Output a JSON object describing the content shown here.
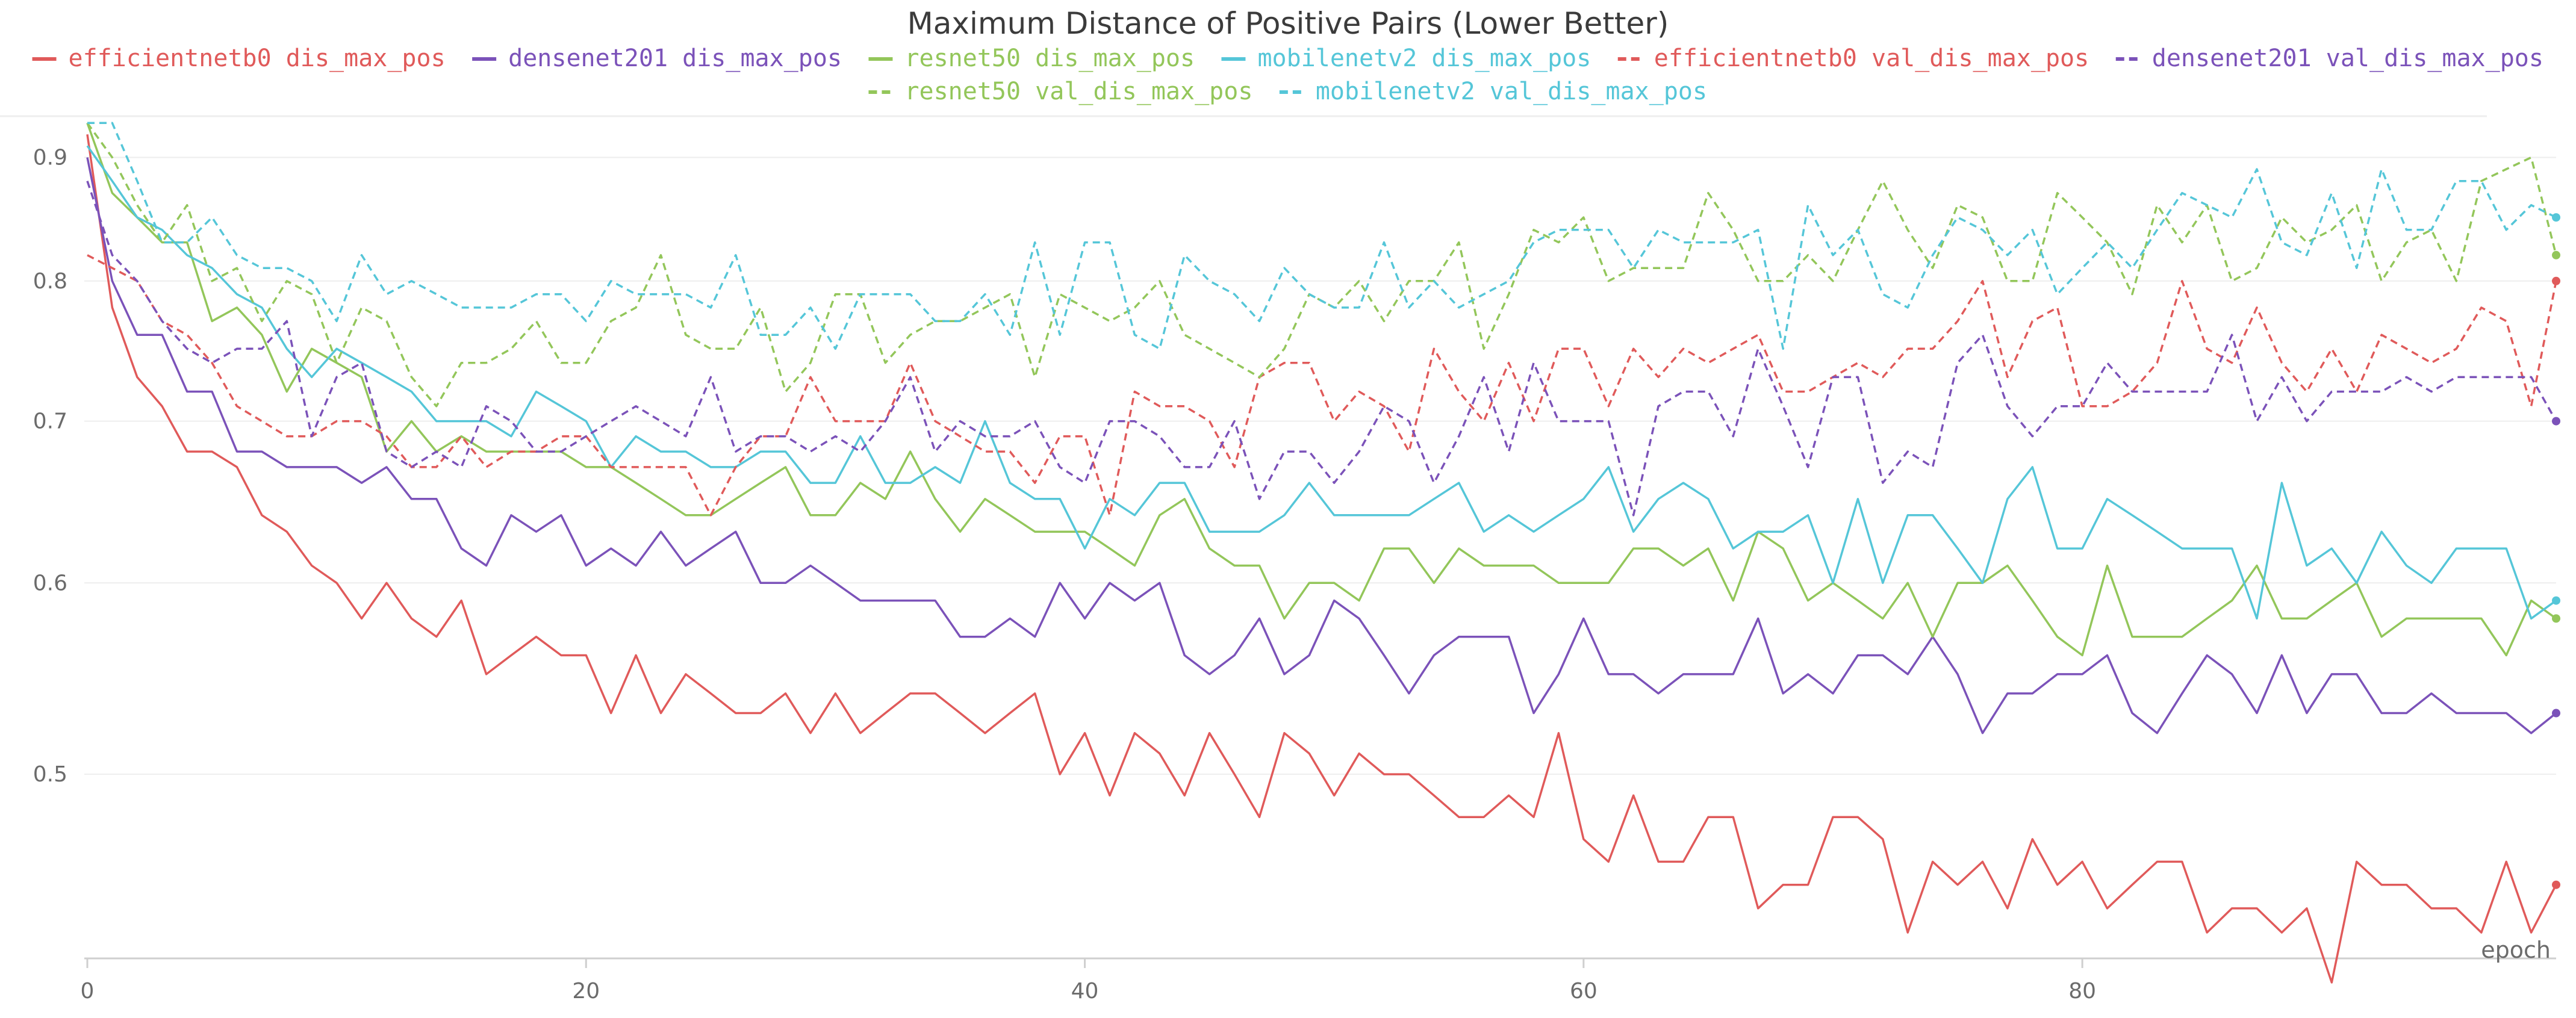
{
  "colors": {
    "efficientnetb0": "#e05a5a",
    "densenet201": "#7b52b9",
    "resnet50": "#93c65a",
    "mobilenetv2": "#55c6d8",
    "grid": "#eeeeee",
    "axis": "#cfcfcf",
    "text": "#6b6b6b",
    "title": "#3b3b3b"
  },
  "chart_data": {
    "type": "line",
    "title": "Maximum Distance of Positive Pairs (Lower Better)",
    "xlabel": "epoch",
    "ylabel": "",
    "xlim": [
      0,
      99
    ],
    "ylim": [
      0.42,
      0.935
    ],
    "y_scale": "log",
    "x_ticks": [
      0,
      20,
      40,
      60,
      80
    ],
    "y_ticks": [
      0.5,
      0.6,
      0.7,
      0.8,
      0.9
    ],
    "grid": true,
    "legend": "top",
    "series": [
      {
        "name": "efficientnetb0 dis_max_pos",
        "model": "efficientnetb0",
        "dash": "solid",
        "values": [
          0.92,
          0.78,
          0.73,
          0.71,
          0.68,
          0.68,
          0.67,
          0.64,
          0.63,
          0.61,
          0.6,
          0.58,
          0.6,
          0.58,
          0.57,
          0.59,
          0.55,
          0.56,
          0.57,
          0.56,
          0.56,
          0.53,
          0.56,
          0.53,
          0.55,
          0.54,
          0.53,
          0.53,
          0.54,
          0.52,
          0.54,
          0.52,
          0.53,
          0.54,
          0.54,
          0.53,
          0.52,
          0.53,
          0.54,
          0.5,
          0.52,
          0.49,
          0.52,
          0.51,
          0.49,
          0.52,
          0.5,
          0.48,
          0.52,
          0.51,
          0.49,
          0.51,
          0.5,
          0.5,
          0.49,
          0.48,
          0.48,
          0.49,
          0.48,
          0.52,
          0.47,
          0.46,
          0.49,
          0.46,
          0.46,
          0.48,
          0.48,
          0.44,
          0.45,
          0.45,
          0.48,
          0.48,
          0.47,
          0.43,
          0.46,
          0.45,
          0.46,
          0.44,
          0.47,
          0.45,
          0.46,
          0.44,
          0.45,
          0.46,
          0.46,
          0.43,
          0.44,
          0.44,
          0.43,
          0.44,
          0.41,
          0.46,
          0.45,
          0.45,
          0.44,
          0.44,
          0.43,
          0.46,
          0.43,
          0.45
        ]
      },
      {
        "name": "densenet201 dis_max_pos",
        "model": "densenet201",
        "dash": "solid",
        "values": [
          0.9,
          0.8,
          0.76,
          0.76,
          0.72,
          0.72,
          0.68,
          0.68,
          0.67,
          0.67,
          0.67,
          0.66,
          0.67,
          0.65,
          0.65,
          0.62,
          0.61,
          0.64,
          0.63,
          0.64,
          0.61,
          0.62,
          0.61,
          0.63,
          0.61,
          0.62,
          0.63,
          0.6,
          0.6,
          0.61,
          0.6,
          0.59,
          0.59,
          0.59,
          0.59,
          0.57,
          0.57,
          0.58,
          0.57,
          0.6,
          0.58,
          0.6,
          0.59,
          0.6,
          0.56,
          0.55,
          0.56,
          0.58,
          0.55,
          0.56,
          0.59,
          0.58,
          0.56,
          0.54,
          0.56,
          0.57,
          0.57,
          0.57,
          0.53,
          0.55,
          0.58,
          0.55,
          0.55,
          0.54,
          0.55,
          0.55,
          0.55,
          0.58,
          0.54,
          0.55,
          0.54,
          0.56,
          0.56,
          0.55,
          0.57,
          0.55,
          0.52,
          0.54,
          0.54,
          0.55,
          0.55,
          0.56,
          0.53,
          0.52,
          0.54,
          0.56,
          0.55,
          0.53,
          0.56,
          0.53,
          0.55,
          0.55,
          0.53,
          0.53,
          0.54,
          0.53,
          0.53,
          0.53,
          0.52,
          0.53
        ]
      },
      {
        "name": "resnet50 dis_max_pos",
        "model": "resnet50",
        "dash": "solid",
        "values": [
          0.93,
          0.87,
          0.85,
          0.83,
          0.83,
          0.77,
          0.78,
          0.76,
          0.72,
          0.75,
          0.74,
          0.73,
          0.68,
          0.7,
          0.68,
          0.69,
          0.68,
          0.68,
          0.68,
          0.68,
          0.67,
          0.67,
          0.66,
          0.65,
          0.64,
          0.64,
          0.65,
          0.66,
          0.67,
          0.64,
          0.64,
          0.66,
          0.65,
          0.68,
          0.65,
          0.63,
          0.65,
          0.64,
          0.63,
          0.63,
          0.63,
          0.62,
          0.61,
          0.64,
          0.65,
          0.62,
          0.61,
          0.61,
          0.58,
          0.6,
          0.6,
          0.59,
          0.62,
          0.62,
          0.6,
          0.62,
          0.61,
          0.61,
          0.61,
          0.6,
          0.6,
          0.6,
          0.62,
          0.62,
          0.61,
          0.62,
          0.59,
          0.63,
          0.62,
          0.59,
          0.6,
          0.59,
          0.58,
          0.6,
          0.57,
          0.6,
          0.6,
          0.61,
          0.59,
          0.57,
          0.56,
          0.61,
          0.57,
          0.57,
          0.57,
          0.58,
          0.59,
          0.61,
          0.58,
          0.58,
          0.59,
          0.6,
          0.57,
          0.58,
          0.58,
          0.58,
          0.58,
          0.56,
          0.59,
          0.58
        ]
      },
      {
        "name": "mobilenetv2 dis_max_pos",
        "model": "mobilenetv2",
        "dash": "solid",
        "values": [
          0.91,
          0.88,
          0.85,
          0.84,
          0.82,
          0.81,
          0.79,
          0.78,
          0.75,
          0.73,
          0.75,
          0.74,
          0.73,
          0.72,
          0.7,
          0.7,
          0.7,
          0.69,
          0.72,
          0.71,
          0.7,
          0.67,
          0.69,
          0.68,
          0.68,
          0.67,
          0.67,
          0.68,
          0.68,
          0.66,
          0.66,
          0.69,
          0.66,
          0.66,
          0.67,
          0.66,
          0.7,
          0.66,
          0.65,
          0.65,
          0.62,
          0.65,
          0.64,
          0.66,
          0.66,
          0.63,
          0.63,
          0.63,
          0.64,
          0.66,
          0.64,
          0.64,
          0.64,
          0.64,
          0.65,
          0.66,
          0.63,
          0.64,
          0.63,
          0.64,
          0.65,
          0.67,
          0.63,
          0.65,
          0.66,
          0.65,
          0.62,
          0.63,
          0.63,
          0.64,
          0.6,
          0.65,
          0.6,
          0.64,
          0.64,
          0.62,
          0.6,
          0.65,
          0.67,
          0.62,
          0.62,
          0.65,
          0.64,
          0.63,
          0.62,
          0.62,
          0.62,
          0.58,
          0.66,
          0.61,
          0.62,
          0.6,
          0.63,
          0.61,
          0.6,
          0.62,
          0.62,
          0.62,
          0.58,
          0.59
        ]
      },
      {
        "name": "efficientnetb0 val_dis_max_pos",
        "model": "efficientnetb0",
        "dash": "dashed",
        "values": [
          0.82,
          0.81,
          0.8,
          0.77,
          0.76,
          0.74,
          0.71,
          0.7,
          0.69,
          0.69,
          0.7,
          0.7,
          0.69,
          0.67,
          0.67,
          0.69,
          0.67,
          0.68,
          0.68,
          0.69,
          0.69,
          0.67,
          0.67,
          0.67,
          0.67,
          0.64,
          0.67,
          0.69,
          0.69,
          0.73,
          0.7,
          0.7,
          0.7,
          0.74,
          0.7,
          0.69,
          0.68,
          0.68,
          0.66,
          0.69,
          0.69,
          0.64,
          0.72,
          0.71,
          0.71,
          0.7,
          0.67,
          0.73,
          0.74,
          0.74,
          0.7,
          0.72,
          0.71,
          0.68,
          0.75,
          0.72,
          0.7,
          0.74,
          0.7,
          0.75,
          0.75,
          0.71,
          0.75,
          0.73,
          0.75,
          0.74,
          0.75,
          0.76,
          0.72,
          0.72,
          0.73,
          0.74,
          0.73,
          0.75,
          0.75,
          0.77,
          0.8,
          0.73,
          0.77,
          0.78,
          0.71,
          0.71,
          0.72,
          0.74,
          0.8,
          0.75,
          0.74,
          0.78,
          0.74,
          0.72,
          0.75,
          0.72,
          0.76,
          0.75,
          0.74,
          0.75,
          0.78,
          0.77,
          0.71,
          0.8
        ]
      },
      {
        "name": "densenet201 val_dis_max_pos",
        "model": "densenet201",
        "dash": "dashed",
        "values": [
          0.88,
          0.82,
          0.8,
          0.77,
          0.75,
          0.74,
          0.75,
          0.75,
          0.77,
          0.69,
          0.73,
          0.74,
          0.68,
          0.67,
          0.68,
          0.67,
          0.71,
          0.7,
          0.68,
          0.68,
          0.69,
          0.7,
          0.71,
          0.7,
          0.69,
          0.73,
          0.68,
          0.69,
          0.69,
          0.68,
          0.69,
          0.68,
          0.7,
          0.73,
          0.68,
          0.7,
          0.69,
          0.69,
          0.7,
          0.67,
          0.66,
          0.7,
          0.7,
          0.69,
          0.67,
          0.67,
          0.7,
          0.65,
          0.68,
          0.68,
          0.66,
          0.68,
          0.71,
          0.7,
          0.66,
          0.69,
          0.73,
          0.68,
          0.74,
          0.7,
          0.7,
          0.7,
          0.64,
          0.71,
          0.72,
          0.72,
          0.69,
          0.75,
          0.71,
          0.67,
          0.73,
          0.73,
          0.66,
          0.68,
          0.67,
          0.74,
          0.76,
          0.71,
          0.69,
          0.71,
          0.71,
          0.74,
          0.72,
          0.72,
          0.72,
          0.72,
          0.76,
          0.7,
          0.73,
          0.7,
          0.72,
          0.72,
          0.72,
          0.73,
          0.72,
          0.73,
          0.73,
          0.73,
          0.73,
          0.7
        ]
      },
      {
        "name": "resnet50 val_dis_max_pos",
        "model": "resnet50",
        "dash": "dashed",
        "values": [
          0.93,
          0.9,
          0.86,
          0.83,
          0.86,
          0.8,
          0.81,
          0.77,
          0.8,
          0.79,
          0.74,
          0.78,
          0.77,
          0.73,
          0.71,
          0.74,
          0.74,
          0.75,
          0.77,
          0.74,
          0.74,
          0.77,
          0.78,
          0.82,
          0.76,
          0.75,
          0.75,
          0.78,
          0.72,
          0.74,
          0.79,
          0.79,
          0.74,
          0.76,
          0.77,
          0.77,
          0.78,
          0.79,
          0.73,
          0.79,
          0.78,
          0.77,
          0.78,
          0.8,
          0.76,
          0.75,
          0.74,
          0.73,
          0.75,
          0.79,
          0.78,
          0.8,
          0.77,
          0.8,
          0.8,
          0.83,
          0.75,
          0.79,
          0.84,
          0.83,
          0.85,
          0.8,
          0.81,
          0.81,
          0.81,
          0.87,
          0.84,
          0.8,
          0.8,
          0.82,
          0.8,
          0.84,
          0.88,
          0.84,
          0.81,
          0.86,
          0.85,
          0.8,
          0.8,
          0.87,
          0.85,
          0.83,
          0.79,
          0.86,
          0.83,
          0.86,
          0.8,
          0.81,
          0.85,
          0.83,
          0.84,
          0.86,
          0.8,
          0.83,
          0.84,
          0.8,
          0.88,
          0.89,
          0.9,
          0.82
        ]
      },
      {
        "name": "mobilenetv2 val_dis_max_pos",
        "model": "mobilenetv2",
        "dash": "dashed",
        "values": [
          0.93,
          0.93,
          0.88,
          0.83,
          0.83,
          0.85,
          0.82,
          0.81,
          0.81,
          0.8,
          0.77,
          0.82,
          0.79,
          0.8,
          0.79,
          0.78,
          0.78,
          0.78,
          0.79,
          0.79,
          0.77,
          0.8,
          0.79,
          0.79,
          0.79,
          0.78,
          0.82,
          0.76,
          0.76,
          0.78,
          0.75,
          0.79,
          0.79,
          0.79,
          0.77,
          0.77,
          0.79,
          0.76,
          0.83,
          0.76,
          0.83,
          0.83,
          0.76,
          0.75,
          0.82,
          0.8,
          0.79,
          0.77,
          0.81,
          0.79,
          0.78,
          0.78,
          0.83,
          0.78,
          0.8,
          0.78,
          0.79,
          0.8,
          0.83,
          0.84,
          0.84,
          0.84,
          0.81,
          0.84,
          0.83,
          0.83,
          0.83,
          0.84,
          0.75,
          0.86,
          0.82,
          0.84,
          0.79,
          0.78,
          0.82,
          0.85,
          0.84,
          0.82,
          0.84,
          0.79,
          0.81,
          0.83,
          0.81,
          0.84,
          0.87,
          0.86,
          0.85,
          0.89,
          0.83,
          0.82,
          0.87,
          0.81,
          0.89,
          0.84,
          0.84,
          0.88,
          0.88,
          0.84,
          0.86,
          0.85
        ]
      }
    ]
  }
}
